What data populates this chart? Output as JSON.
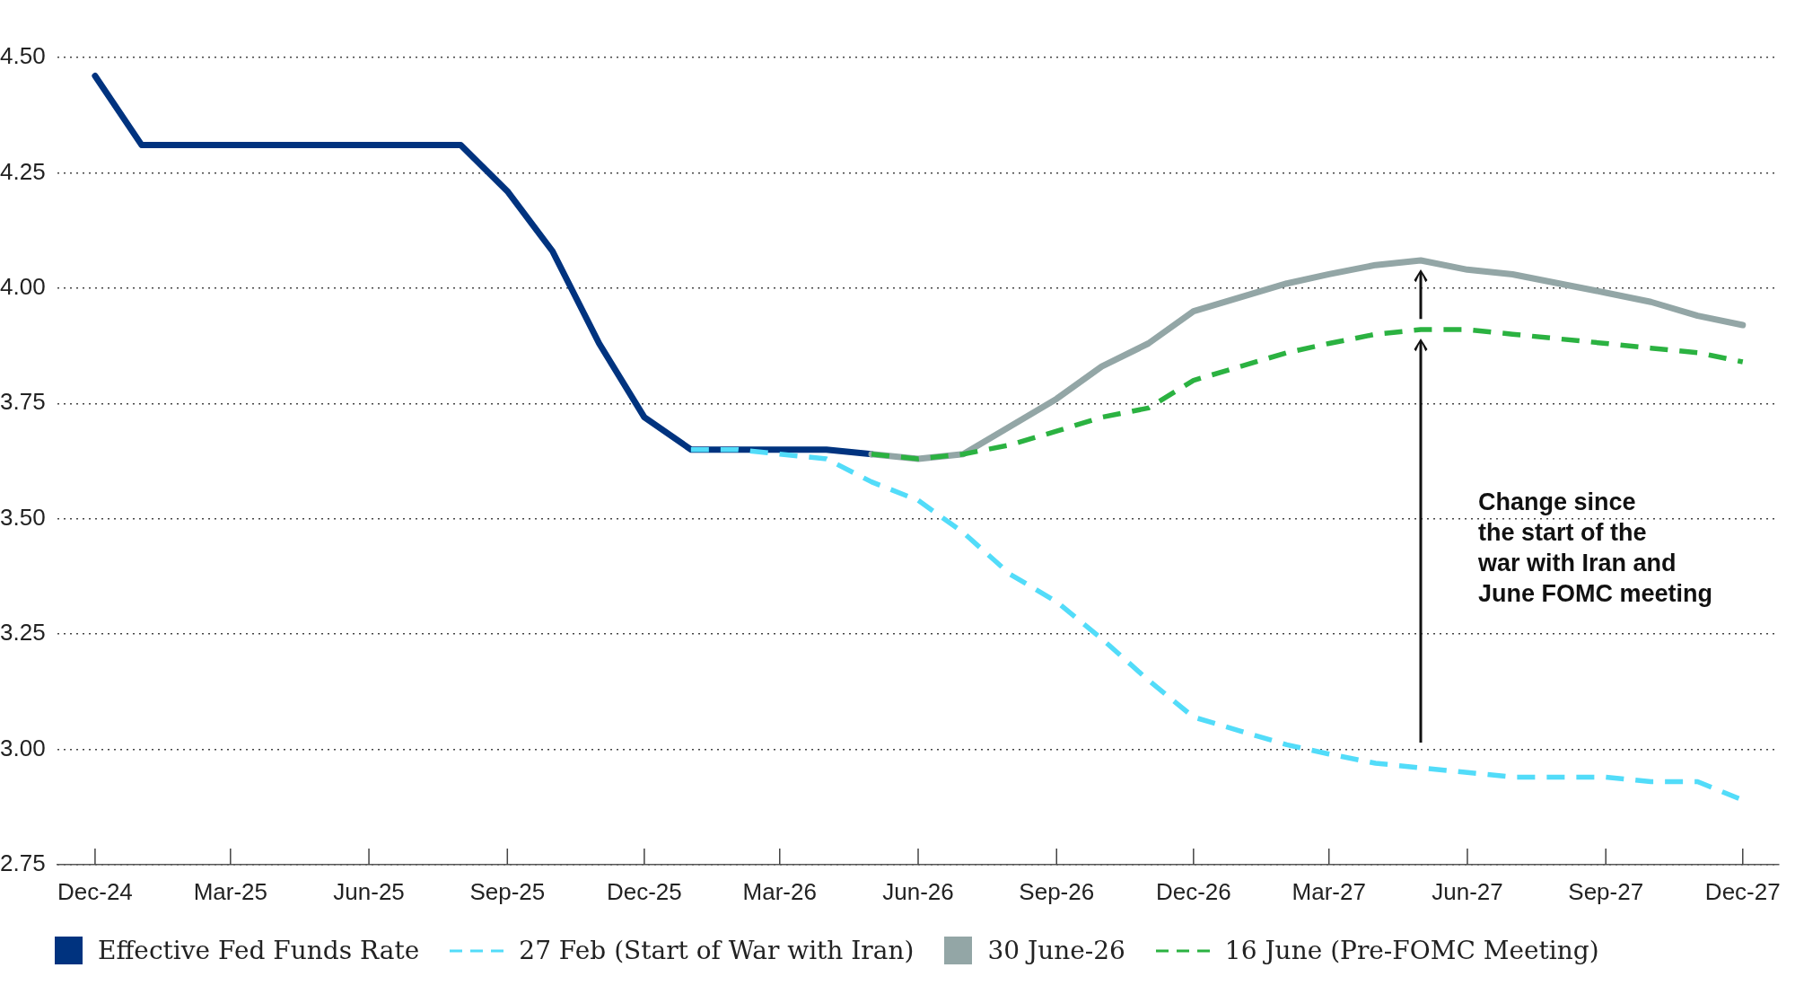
{
  "chart_data": {
    "type": "line",
    "x": [
      "2024-12",
      "2025-01",
      "2025-02",
      "2025-03",
      "2025-04",
      "2025-05",
      "2025-06",
      "2025-07",
      "2025-08",
      "2025-09",
      "2025-10",
      "2025-11",
      "2025-12",
      "2026-01",
      "2026-02",
      "2026-03",
      "2026-04",
      "2026-05",
      "2026-06",
      "2026-07",
      "2026-08",
      "2026-09",
      "2026-10",
      "2026-11",
      "2026-12",
      "2027-01",
      "2027-02",
      "2027-03",
      "2027-04",
      "2027-05",
      "2027-06",
      "2027-07",
      "2027-08",
      "2027-09",
      "2027-10",
      "2027-11",
      "2027-12"
    ],
    "xlim": [
      "2024-11-06",
      "2027-12-25"
    ],
    "xticks": [
      {
        "value": "2024-12",
        "label": "Dec-24"
      },
      {
        "value": "2025-03",
        "label": "Mar-25"
      },
      {
        "value": "2025-06",
        "label": "Jun-25"
      },
      {
        "value": "2025-09",
        "label": "Sep-25"
      },
      {
        "value": "2025-12",
        "label": "Dec-25"
      },
      {
        "value": "2026-03",
        "label": "Mar-26"
      },
      {
        "value": "2026-06",
        "label": "Jun-26"
      },
      {
        "value": "2026-09",
        "label": "Sep-26"
      },
      {
        "value": "2026-12",
        "label": "Dec-26"
      },
      {
        "value": "2027-03",
        "label": "Mar-27"
      },
      {
        "value": "2027-06",
        "label": "Jun-27"
      },
      {
        "value": "2027-09",
        "label": "Sep-27"
      },
      {
        "value": "2027-12",
        "label": "Dec-27"
      }
    ],
    "ylim": [
      2.75,
      4.5
    ],
    "yticks": [
      2.75,
      {
        "value": 3,
        "label": "3.00"
      },
      3.25,
      {
        "value": 3.5,
        "label": "3.50"
      },
      3.75,
      {
        "value": 4,
        "label": "4.00"
      },
      4.25,
      {
        "value": 4.5,
        "label": "4.50"
      }
    ],
    "series": [
      {
        "name": "Effective Fed Funds Rate",
        "color": "#00337f",
        "line_style": "solid",
        "values": [
          4.46,
          4.31,
          4.31,
          4.31,
          4.31,
          4.31,
          4.31,
          4.31,
          4.31,
          4.21,
          4.08,
          3.88,
          3.72,
          3.65,
          3.65,
          3.65,
          3.65,
          3.64,
          null,
          null,
          null,
          null,
          null,
          null,
          null,
          null,
          null,
          null,
          null,
          null,
          null,
          null,
          null,
          null,
          null,
          null,
          null
        ]
      },
      {
        "name": "27 Feb (Start of War with Iran)",
        "color": "#52dcf9",
        "line_style": "dashed",
        "values": [
          null,
          null,
          null,
          null,
          null,
          null,
          null,
          null,
          null,
          null,
          null,
          null,
          null,
          3.65,
          3.65,
          3.64,
          3.63,
          3.58,
          3.54,
          3.47,
          3.38,
          3.32,
          3.24,
          3.15,
          3.07,
          3.04,
          3.01,
          2.99,
          2.97,
          2.96,
          2.95,
          2.94,
          2.94,
          2.94,
          2.93,
          2.93,
          2.89
        ]
      },
      {
        "name": "30 June-26",
        "color": "#93a6a6",
        "line_style": "solid",
        "values": [
          null,
          null,
          null,
          null,
          null,
          null,
          null,
          null,
          null,
          null,
          null,
          null,
          null,
          null,
          null,
          null,
          null,
          3.64,
          3.63,
          3.64,
          3.7,
          3.76,
          3.83,
          3.88,
          3.95,
          3.98,
          4.01,
          4.03,
          4.05,
          4.06,
          4.04,
          4.03,
          4.01,
          3.99,
          3.97,
          3.94,
          3.92
        ]
      },
      {
        "name": "16 June (Pre-FOMC Meeting)",
        "color": "#2bb241",
        "line_style": "dashed",
        "values": [
          null,
          null,
          null,
          null,
          null,
          null,
          null,
          null,
          null,
          null,
          null,
          null,
          null,
          null,
          null,
          null,
          null,
          3.64,
          3.63,
          3.64,
          3.66,
          3.69,
          3.72,
          3.74,
          3.8,
          3.83,
          3.86,
          3.88,
          3.9,
          3.91,
          3.91,
          3.9,
          3.89,
          3.88,
          3.87,
          3.86,
          3.84
        ]
      }
    ],
    "grid": "y",
    "legend": "bottom",
    "annotations": [
      "Change since\nthe start of the\nwar with Iran and\nJune FOMC meeting"
    ]
  }
}
